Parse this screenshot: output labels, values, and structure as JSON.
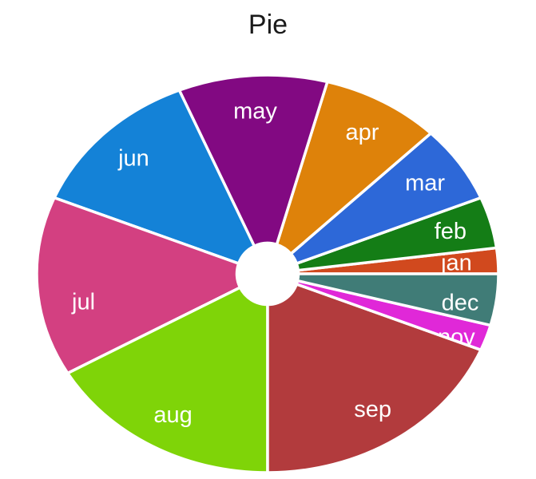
{
  "chart_data": {
    "type": "pie",
    "title": "Pie",
    "labels": [
      "jan",
      "feb",
      "mar",
      "apr",
      "may",
      "jun",
      "jul",
      "aug",
      "sep",
      "nov",
      "dec"
    ],
    "values": [
      1,
      2,
      3,
      4,
      5,
      6,
      7,
      8,
      9,
      1,
      2
    ],
    "colors": [
      "#D1491E",
      "#147D16",
      "#2D68D8",
      "#DE820A",
      "#820982",
      "#1482D7",
      "#D34081",
      "#7FD408",
      "#B23B3D",
      "#E028D8",
      "#407C77"
    ],
    "start_angle_deg": 0,
    "direction": "counterclockwise",
    "donut": true,
    "legend": "none",
    "background": "#ffffff",
    "title_color": "#1a1a1a",
    "label_color": "#ffffff",
    "slice_border_color": "#ffffff"
  }
}
